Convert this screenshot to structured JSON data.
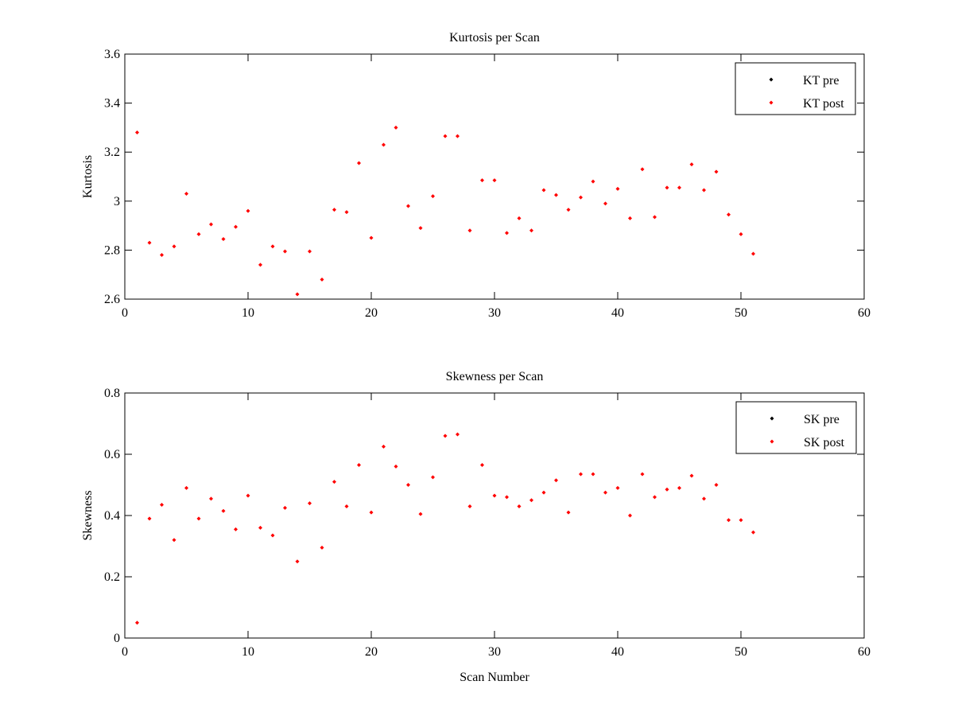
{
  "colors": {
    "pre": "#000000",
    "post": "#ff0000",
    "axes": "#000000",
    "background": "#ffffff"
  },
  "chart_data": [
    {
      "type": "scatter",
      "title": "Kurtosis per Scan",
      "xlabel": "",
      "ylabel": "Kurtosis",
      "xlim": [
        0,
        60
      ],
      "ylim": [
        2.6,
        3.6
      ],
      "xticks": [
        0,
        10,
        20,
        30,
        40,
        50,
        60
      ],
      "yticks": [
        2.6,
        2.8,
        3,
        3.2,
        3.4,
        3.6
      ],
      "xtick_labels": [
        "0",
        "10",
        "20",
        "30",
        "40",
        "50",
        "60"
      ],
      "ytick_labels": [
        "2.6",
        "2.8",
        "3",
        "3.2",
        "3.4",
        "3.6"
      ],
      "grid": false,
      "legend_position": "top-right",
      "series": [
        {
          "name": "KT pre",
          "color": "#000000",
          "x": [],
          "y": []
        },
        {
          "name": "KT post",
          "color": "#ff0000",
          "x": [
            1,
            2,
            3,
            4,
            5,
            6,
            7,
            8,
            9,
            10,
            11,
            12,
            13,
            14,
            15,
            16,
            17,
            18,
            19,
            20,
            21,
            22,
            23,
            24,
            25,
            26,
            27,
            28,
            29,
            30,
            31,
            32,
            33,
            34,
            35,
            36,
            37,
            38,
            39,
            40,
            41,
            42,
            43,
            44,
            45,
            46,
            47,
            48,
            49,
            50,
            51
          ],
          "y": [
            3.28,
            2.83,
            2.78,
            2.815,
            3.03,
            2.865,
            2.905,
            2.845,
            2.895,
            2.96,
            2.74,
            2.815,
            2.795,
            2.62,
            2.795,
            2.68,
            2.965,
            2.955,
            3.155,
            2.85,
            3.23,
            3.3,
            2.98,
            2.89,
            3.02,
            3.265,
            3.265,
            2.88,
            3.085,
            3.085,
            2.87,
            2.93,
            2.88,
            3.045,
            3.025,
            2.965,
            3.015,
            3.08,
            2.99,
            3.05,
            2.93,
            3.13,
            2.935,
            3.055,
            3.055,
            3.15,
            3.045,
            3.12,
            2.945,
            2.865,
            2.785
          ]
        }
      ]
    },
    {
      "type": "scatter",
      "title": "Skewness per Scan",
      "xlabel": "Scan Number",
      "ylabel": "Skewness",
      "xlim": [
        0,
        60
      ],
      "ylim": [
        0,
        0.8
      ],
      "xticks": [
        0,
        10,
        20,
        30,
        40,
        50,
        60
      ],
      "yticks": [
        0,
        0.2,
        0.4,
        0.6,
        0.8
      ],
      "xtick_labels": [
        "0",
        "10",
        "20",
        "30",
        "40",
        "50",
        "60"
      ],
      "ytick_labels": [
        "0",
        "0.2",
        "0.4",
        "0.6",
        "0.8"
      ],
      "grid": false,
      "legend_position": "top-right",
      "series": [
        {
          "name": "SK pre",
          "color": "#000000",
          "x": [],
          "y": []
        },
        {
          "name": "SK post",
          "color": "#ff0000",
          "x": [
            1,
            2,
            3,
            4,
            5,
            6,
            7,
            8,
            9,
            10,
            11,
            12,
            13,
            14,
            15,
            16,
            17,
            18,
            19,
            20,
            21,
            22,
            23,
            24,
            25,
            26,
            27,
            28,
            29,
            30,
            31,
            32,
            33,
            34,
            35,
            36,
            37,
            38,
            39,
            40,
            41,
            42,
            43,
            44,
            45,
            46,
            47,
            48,
            49,
            50,
            51
          ],
          "y": [
            0.05,
            0.39,
            0.435,
            0.32,
            0.49,
            0.39,
            0.455,
            0.415,
            0.355,
            0.465,
            0.36,
            0.335,
            0.425,
            0.25,
            0.44,
            0.295,
            0.51,
            0.43,
            0.565,
            0.41,
            0.625,
            0.56,
            0.5,
            0.405,
            0.525,
            0.66,
            0.665,
            0.43,
            0.565,
            0.465,
            0.46,
            0.43,
            0.45,
            0.475,
            0.515,
            0.41,
            0.535,
            0.535,
            0.475,
            0.49,
            0.4,
            0.535,
            0.46,
            0.485,
            0.49,
            0.53,
            0.455,
            0.5,
            0.385,
            0.385,
            0.345
          ]
        }
      ]
    }
  ]
}
